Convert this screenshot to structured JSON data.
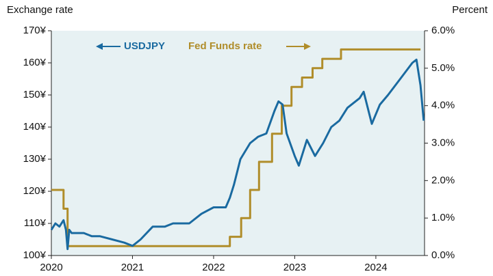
{
  "chart_data": {
    "type": "line",
    "y_label": "Exchange rate",
    "y2_label": "Percent",
    "xlim": [
      2020,
      2024.6
    ],
    "xticks": [
      2020,
      2021,
      2022,
      2023,
      2024
    ],
    "ylim": [
      100,
      170
    ],
    "yticks": [
      {
        "value": 100,
        "label": "100¥"
      },
      {
        "value": 110,
        "label": "110¥"
      },
      {
        "value": 120,
        "label": "120¥"
      },
      {
        "value": 130,
        "label": "130¥"
      },
      {
        "value": 140,
        "label": "140¥"
      },
      {
        "value": 150,
        "label": "150¥"
      },
      {
        "value": 160,
        "label": "160¥"
      },
      {
        "value": 170,
        "label": "170¥"
      }
    ],
    "y2lim": [
      0,
      6
    ],
    "y2ticks": [
      {
        "value": 0,
        "label": "0.0%"
      },
      {
        "value": 1,
        "label": "1.0%"
      },
      {
        "value": 2,
        "label": "2.0%"
      },
      {
        "value": 3,
        "label": "3.0%"
      },
      {
        "value": 4,
        "label": "4.0%"
      },
      {
        "value": 5,
        "label": "5.0%"
      },
      {
        "value": 6,
        "label": "6.0%"
      }
    ],
    "series": [
      {
        "name": "USDJPY",
        "color": "#1a6aa0",
        "x": [
          2020.0,
          2020.05,
          2020.1,
          2020.15,
          2020.18,
          2020.2,
          2020.22,
          2020.25,
          2020.4,
          2020.5,
          2020.6,
          2020.75,
          2020.9,
          2021.0,
          2021.1,
          2021.25,
          2021.4,
          2021.5,
          2021.7,
          2021.85,
          2022.0,
          2022.15,
          2022.2,
          2022.25,
          2022.33,
          2022.45,
          2022.55,
          2022.65,
          2022.75,
          2022.8,
          2022.85,
          2022.9,
          2023.0,
          2023.05,
          2023.15,
          2023.25,
          2023.35,
          2023.45,
          2023.55,
          2023.65,
          2023.8,
          2023.85,
          2023.95,
          2024.05,
          2024.15,
          2024.3,
          2024.45,
          2024.5,
          2024.55,
          2024.59
        ],
        "values": [
          108,
          110,
          109,
          111,
          108,
          102,
          108,
          107,
          107,
          106,
          106,
          105,
          104,
          103,
          105,
          109,
          109,
          110,
          110,
          113,
          115,
          115,
          118,
          122,
          130,
          135,
          137,
          138,
          145,
          148,
          147,
          138,
          131,
          128,
          136,
          131,
          135,
          140,
          142,
          146,
          149,
          151,
          141,
          147,
          150,
          155,
          160,
          161,
          153,
          142
        ]
      },
      {
        "name": "Fed Funds rate",
        "color": "#b08d2a",
        "axis": "y2",
        "x": [
          2020.0,
          2020.15,
          2020.15,
          2020.2,
          2020.2,
          2022.2,
          2022.2,
          2022.34,
          2022.34,
          2022.45,
          2022.45,
          2022.56,
          2022.56,
          2022.72,
          2022.72,
          2022.84,
          2022.84,
          2022.96,
          2022.96,
          2023.09,
          2023.09,
          2023.22,
          2023.22,
          2023.34,
          2023.34,
          2023.57,
          2023.57,
          2024.55
        ],
        "values": [
          1.75,
          1.75,
          1.25,
          1.25,
          0.25,
          0.25,
          0.5,
          0.5,
          1.0,
          1.0,
          1.75,
          1.75,
          2.5,
          2.5,
          3.25,
          3.25,
          4.0,
          4.0,
          4.5,
          4.5,
          4.75,
          4.75,
          5.0,
          5.0,
          5.25,
          5.25,
          5.5,
          5.5
        ]
      }
    ]
  }
}
